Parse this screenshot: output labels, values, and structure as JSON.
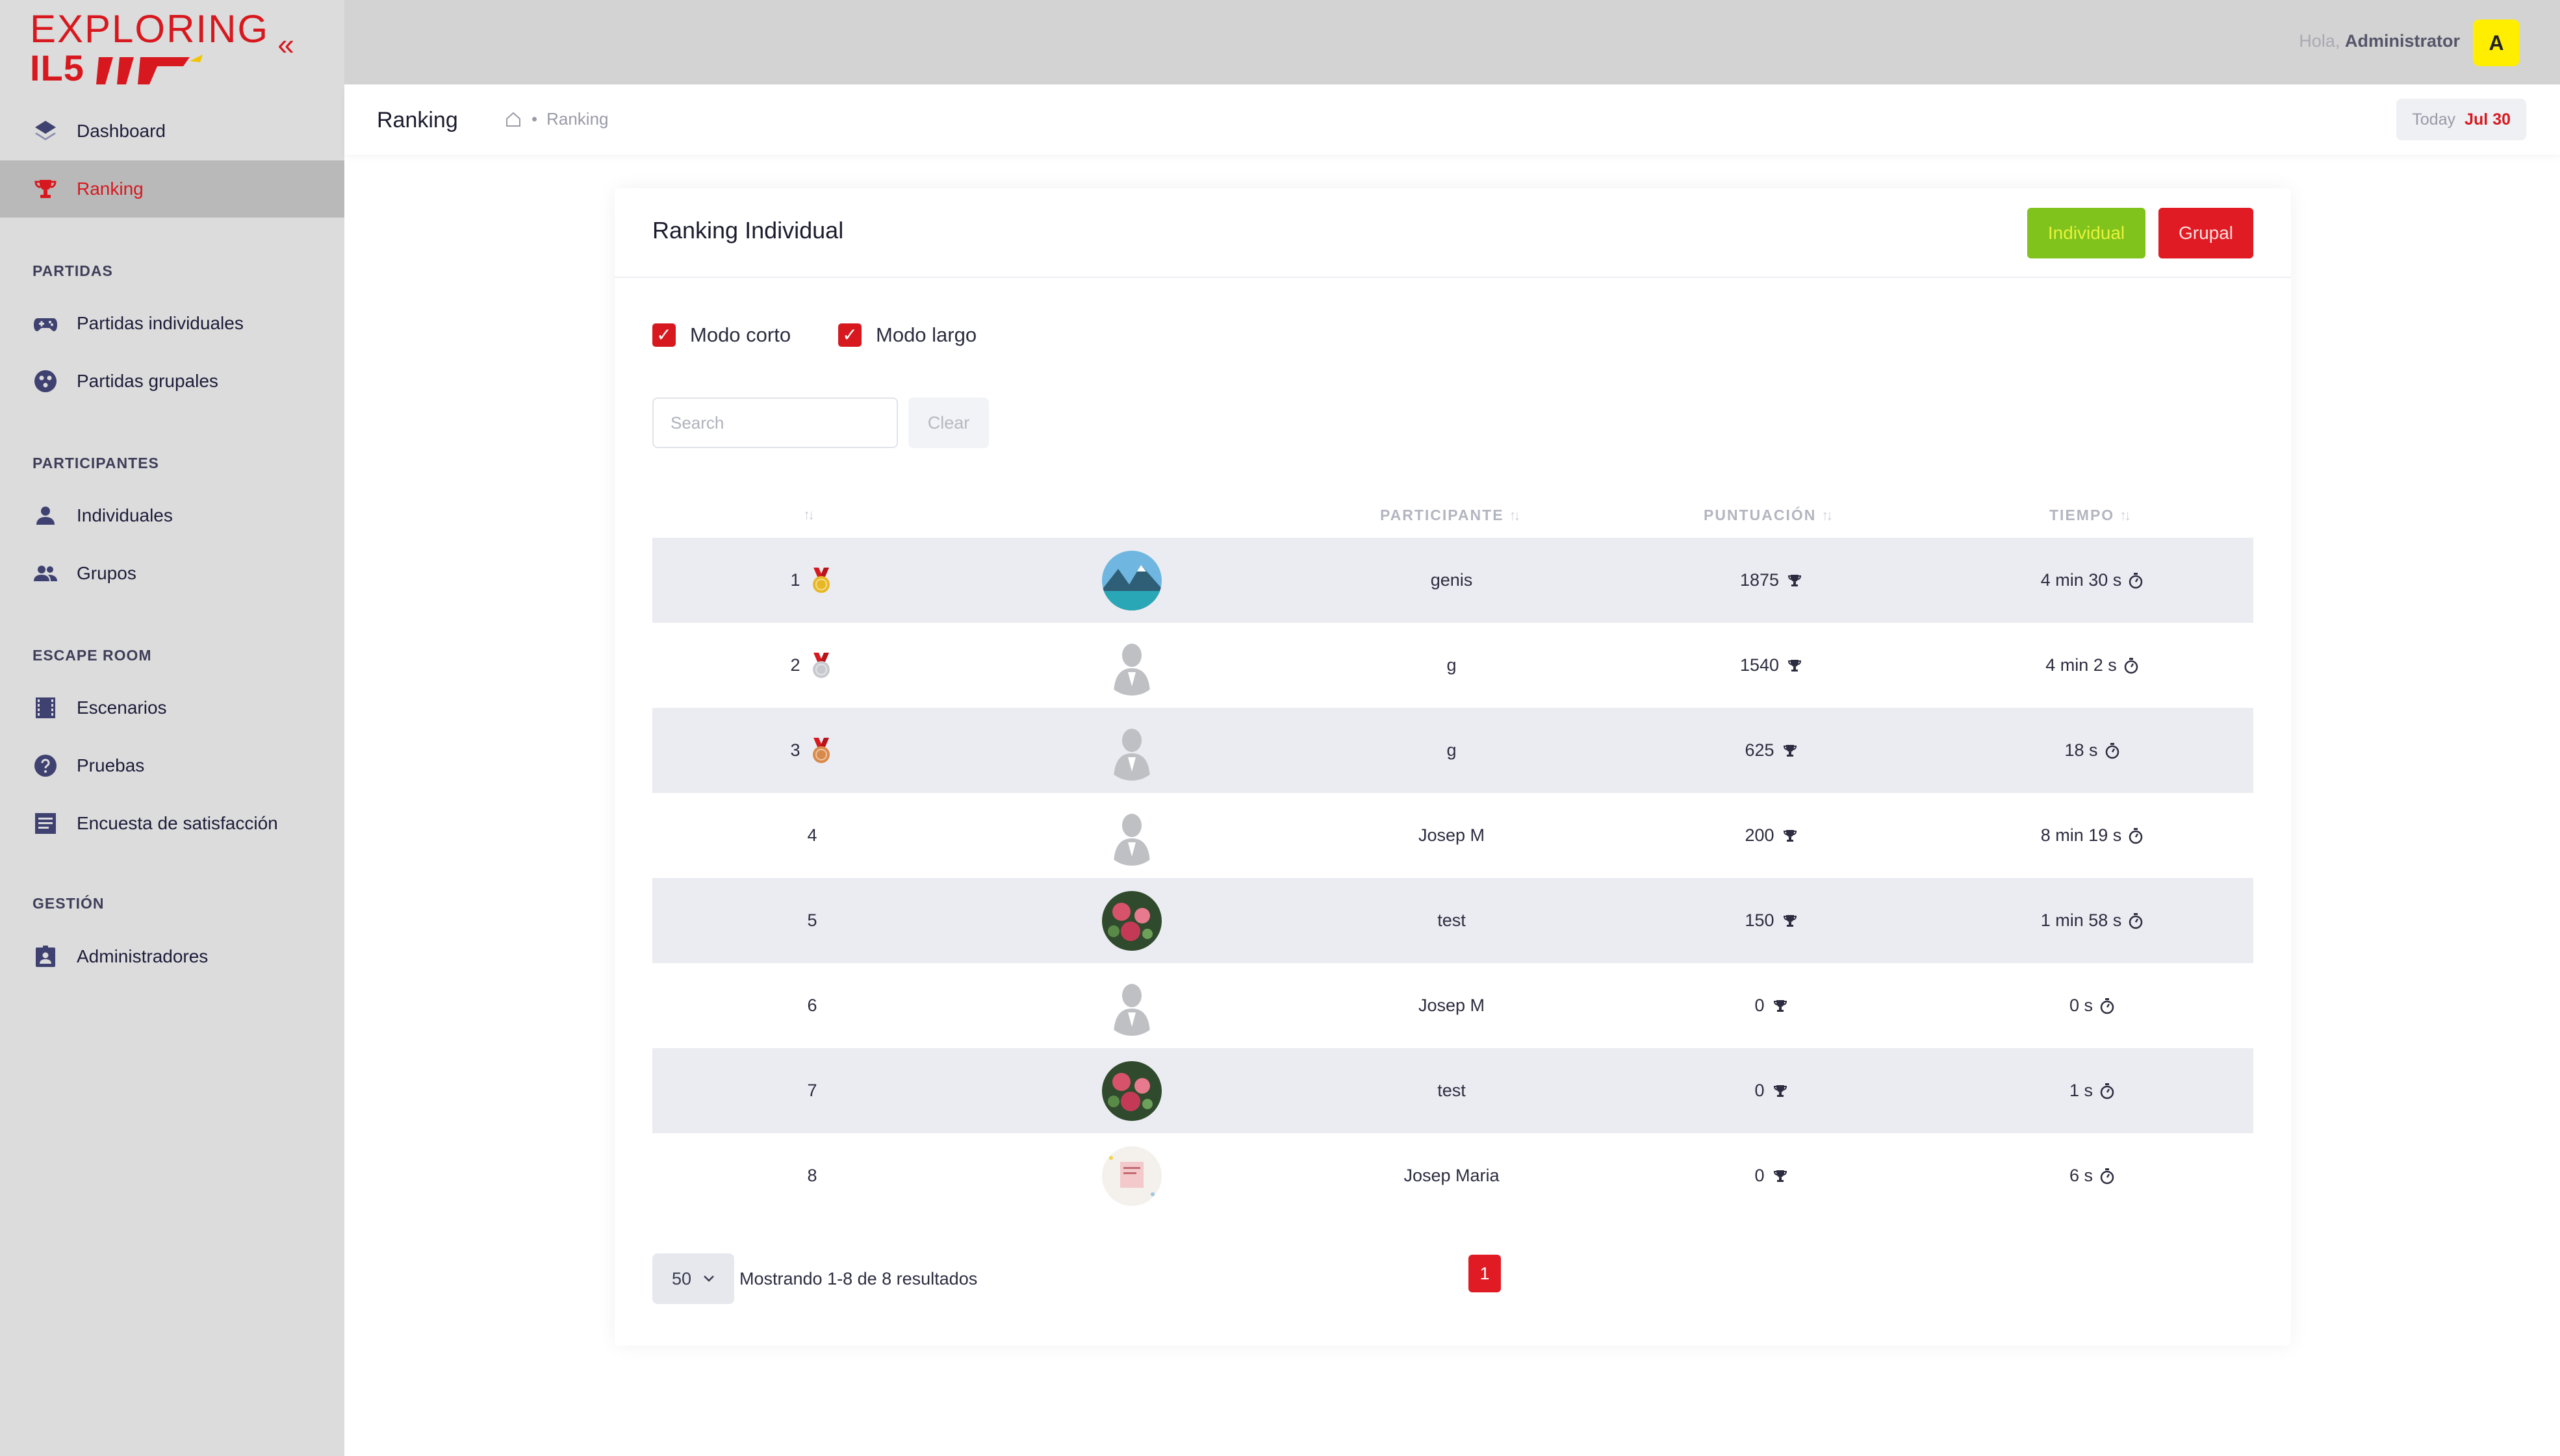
{
  "brand": {
    "logo_top": "EXPLORING",
    "logo_bottom": "IL5",
    "accent": "#d7191f",
    "accent_green": "#7fc31c",
    "highlight_yellow": "#ffee00"
  },
  "sidebar": {
    "items": [
      {
        "label": "Dashboard",
        "icon": "layers-icon"
      },
      {
        "label": "Ranking",
        "icon": "trophy-icon",
        "active": true
      }
    ],
    "sections": [
      {
        "title": "PARTIDAS",
        "items": [
          {
            "label": "Partidas individuales",
            "icon": "gamepad-icon"
          },
          {
            "label": "Partidas grupales",
            "icon": "group-circle-icon"
          }
        ]
      },
      {
        "title": "PARTICIPANTES",
        "items": [
          {
            "label": "Individuales",
            "icon": "person-icon"
          },
          {
            "label": "Grupos",
            "icon": "people-icon"
          }
        ]
      },
      {
        "title": "ESCAPE ROOM",
        "items": [
          {
            "label": "Escenarios",
            "icon": "film-icon"
          },
          {
            "label": "Pruebas",
            "icon": "help-circle-icon"
          },
          {
            "label": "Encuesta de satisfacción",
            "icon": "list-icon"
          }
        ]
      },
      {
        "title": "GESTIÓN",
        "items": [
          {
            "label": "Administradores",
            "icon": "badge-icon"
          }
        ]
      }
    ]
  },
  "topbar": {
    "greeting": "Hola,",
    "user": "Administrator",
    "avatar_letter": "A"
  },
  "subheader": {
    "title": "Ranking",
    "breadcrumb": "Ranking",
    "today_label": "Today",
    "today_value": "Jul 30"
  },
  "card": {
    "title": "Ranking Individual",
    "btn_individual": "Individual",
    "btn_grupal": "Grupal",
    "check_corto": "Modo corto",
    "check_largo": "Modo largo",
    "search_placeholder": "Search",
    "clear_label": "Clear"
  },
  "table": {
    "headers": {
      "participante": "PARTICIPANTE",
      "puntuacion": "PUNTUACIÓN",
      "tiempo": "TIEMPO"
    },
    "rows": [
      {
        "rank": "1",
        "medal": "gold",
        "avatar": "landscape",
        "name": "genis",
        "score": "1875",
        "time": "4 min 30 s"
      },
      {
        "rank": "2",
        "medal": "silver",
        "avatar": "placeholder",
        "name": "g",
        "score": "1540",
        "time": "4 min 2 s"
      },
      {
        "rank": "3",
        "medal": "bronze",
        "avatar": "placeholder",
        "name": "g",
        "score": "625",
        "time": "18 s"
      },
      {
        "rank": "4",
        "medal": "",
        "avatar": "placeholder",
        "name": "Josep M",
        "score": "200",
        "time": "8 min 19 s"
      },
      {
        "rank": "5",
        "medal": "",
        "avatar": "flowers",
        "name": "test",
        "score": "150",
        "time": "1 min 58 s"
      },
      {
        "rank": "6",
        "medal": "",
        "avatar": "placeholder",
        "name": "Josep M",
        "score": "0",
        "time": "0 s"
      },
      {
        "rank": "7",
        "medal": "",
        "avatar": "flowers",
        "name": "test",
        "score": "0",
        "time": "1 s"
      },
      {
        "rank": "8",
        "medal": "",
        "avatar": "document",
        "name": "Josep Maria",
        "score": "0",
        "time": "6 s"
      }
    ]
  },
  "pagination": {
    "per_page": "50",
    "showing": "Mostrando 1-8 de 8 resultados",
    "current_page": "1"
  }
}
